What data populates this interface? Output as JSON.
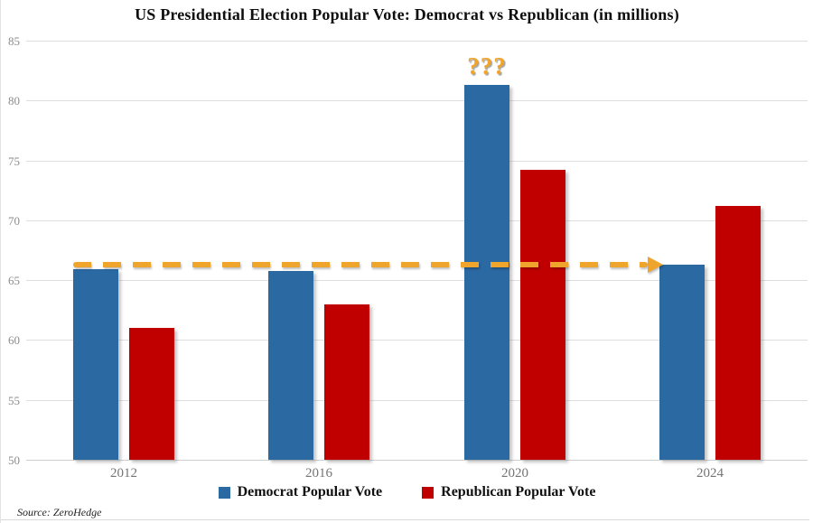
{
  "chart_data": {
    "type": "bar",
    "title": "US Presidential Election Popular Vote: Democrat vs Republican (in millions)",
    "categories": [
      "2012",
      "2016",
      "2020",
      "2024"
    ],
    "series": [
      {
        "name": "Democrat Popular Vote",
        "color": "#2b69a3",
        "values": [
          65.9,
          65.8,
          81.3,
          66.3
        ]
      },
      {
        "name": "Republican Popular Vote",
        "color": "#c00000",
        "values": [
          61.0,
          63.0,
          74.2,
          71.2
        ]
      }
    ],
    "ylim": [
      50,
      85
    ],
    "yticks": [
      50,
      55,
      60,
      65,
      70,
      75,
      80,
      85
    ],
    "grid": true,
    "legend_position": "bottom",
    "annotations": {
      "question_marks": {
        "text": "???",
        "above_category": "2020",
        "color": "#efa42b"
      },
      "dashed_arrow": {
        "level": 66.3,
        "from_category": "2012",
        "to_category": "2024",
        "color": "#efa42b"
      }
    }
  },
  "source": {
    "label": "Source: ZeroHedge"
  }
}
